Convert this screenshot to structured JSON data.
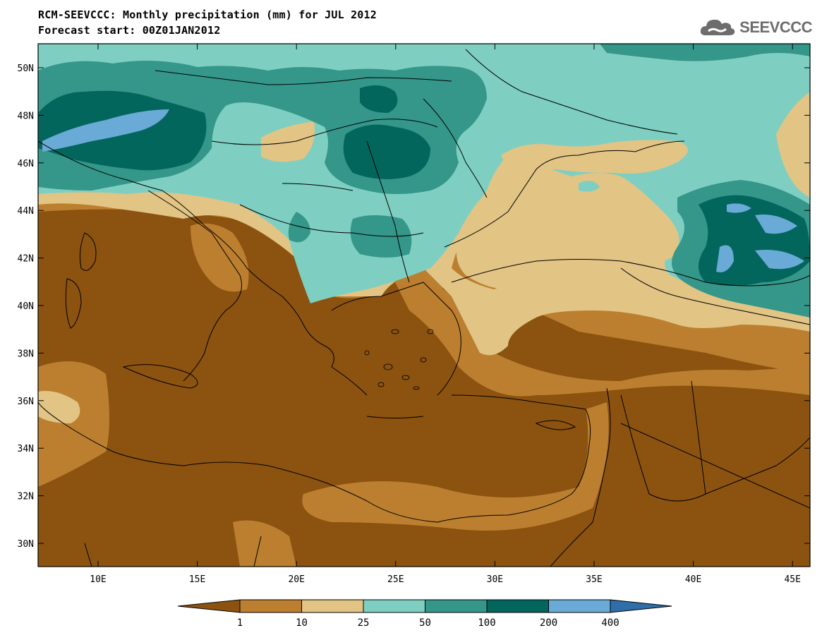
{
  "header": {
    "title": "RCM-SEEVCCC: Monthly precipitation (mm) for JUL 2012",
    "subtitle": "Forecast start: 00Z01JAN2012"
  },
  "logo": {
    "text": "SEEVCCC",
    "icon": "cloud-icon"
  },
  "map": {
    "region": "South-East Europe and Eastern Mediterranean",
    "lon_range": [
      7,
      46
    ],
    "lat_range": [
      29,
      51
    ],
    "lat_ticks": [
      "50N",
      "48N",
      "46N",
      "44N",
      "42N",
      "40N",
      "38N",
      "36N",
      "34N",
      "32N",
      "30N"
    ],
    "lon_ticks": [
      "10E",
      "15E",
      "20E",
      "25E",
      "30E",
      "35E",
      "40E",
      "45E"
    ]
  },
  "colorbar": {
    "thresholds": [
      "1",
      "10",
      "25",
      "50",
      "100",
      "200",
      "400"
    ],
    "colors": [
      "#8b5210",
      "#bc7f30",
      "#e2c485",
      "#7ecfc1",
      "#35968a",
      "#02665d",
      "#6aaad6",
      "#2f6ea8"
    ]
  }
}
